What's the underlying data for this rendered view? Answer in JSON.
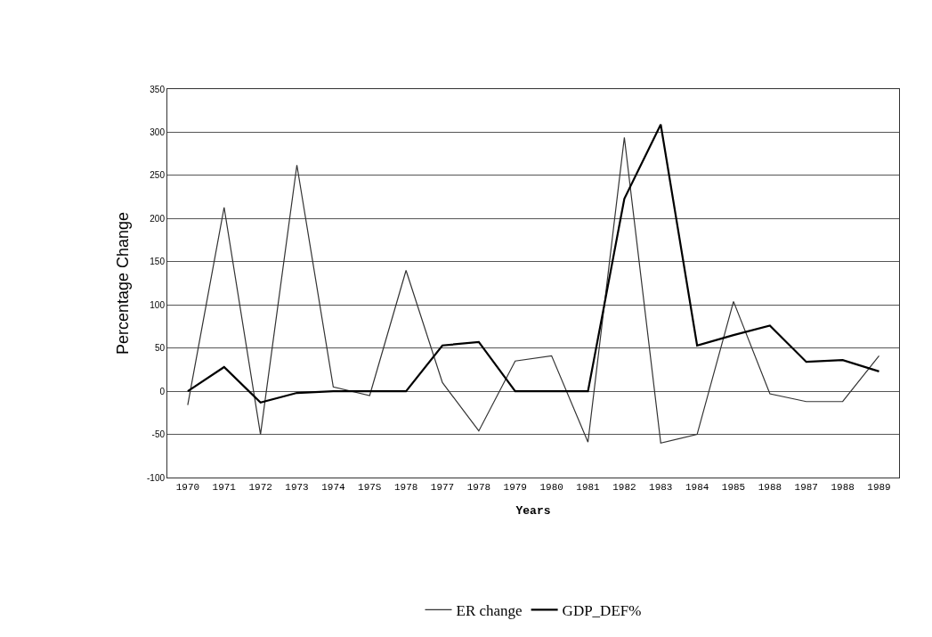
{
  "chart_data": {
    "type": "line",
    "xlabel": "Years",
    "ylabel": "Percentage Change",
    "categories": [
      "1970",
      "1971",
      "1972",
      "1973",
      "1974",
      "197S",
      "1978",
      "1977",
      "1978",
      "1979",
      "1980",
      "1981",
      "1982",
      "1983",
      "1984",
      "1985",
      "1988",
      "1987",
      "1988",
      "1989"
    ],
    "series": [
      {
        "name": "ER change",
        "color": "#333333",
        "values": [
          -16,
          213,
          -50,
          262,
          5,
          -5,
          140,
          10,
          -46,
          35,
          41,
          -59,
          294,
          -60,
          -50,
          104,
          -3,
          -12,
          -12,
          41
        ]
      },
      {
        "name": "GDP_DEF%",
        "color": "#000000",
        "values": [
          0,
          28,
          -13,
          -2,
          0,
          0,
          0,
          53,
          57,
          0,
          0,
          0,
          223,
          309,
          53,
          65,
          76,
          34,
          36,
          23
        ]
      }
    ],
    "ylim": [
      -100,
      350
    ],
    "yticks": [
      -100,
      -50,
      0,
      50,
      100,
      150,
      200,
      250,
      300,
      350
    ],
    "grid": "y",
    "legend": "bottom",
    "marker": "none",
    "line_style": "solid"
  }
}
